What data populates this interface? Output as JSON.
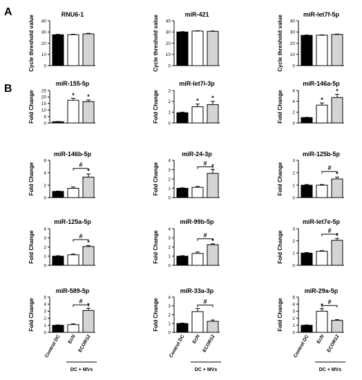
{
  "panel_labels": {
    "a": "A",
    "b": "B"
  },
  "group_label": "DC + MVs",
  "x_categories": [
    "Control DC",
    "EcN",
    "ECOR12"
  ],
  "colors": {
    "control": "#000000",
    "ecn": "#ffffff",
    "ecor12": "#d4d4d4",
    "stroke": "#000000"
  },
  "chart_data": [
    {
      "type": "bar",
      "title": "RNU6-1",
      "ylabel": "Cycle threshold value",
      "ylim": [
        0,
        40
      ],
      "yticks": [
        0,
        10,
        20,
        30,
        40
      ],
      "categories": [
        "Control DC",
        "EcN",
        "ECOR12"
      ],
      "values": [
        27.5,
        27.6,
        28.3
      ],
      "errors": [
        0.4,
        0.4,
        0.5
      ],
      "stars": [
        "",
        "",
        ""
      ],
      "brackets": []
    },
    {
      "type": "bar",
      "title": "miR-421",
      "ylabel": "Cycle threshold value",
      "ylim": [
        0,
        40
      ],
      "yticks": [
        0,
        10,
        20,
        30,
        40
      ],
      "categories": [
        "Control DC",
        "EcN",
        "ECOR12"
      ],
      "values": [
        30.0,
        30.8,
        30.6
      ],
      "errors": [
        0.3,
        0.3,
        0.3
      ],
      "stars": [
        "",
        "",
        ""
      ],
      "brackets": []
    },
    {
      "type": "bar",
      "title": "miR-let7f-5p",
      "ylabel": "Cycle threshold value",
      "ylim": [
        0,
        40
      ],
      "yticks": [
        0,
        10,
        20,
        30,
        40
      ],
      "categories": [
        "Control DC",
        "EcN",
        "ECOR12"
      ],
      "values": [
        27.0,
        27.1,
        27.8
      ],
      "errors": [
        0.3,
        0.3,
        0.3
      ],
      "stars": [
        "",
        "",
        ""
      ],
      "brackets": []
    },
    {
      "type": "bar",
      "title": "miR-155-5p",
      "ylabel": "Fold Change",
      "ylim": [
        0,
        25
      ],
      "yticks": [
        0,
        5,
        10,
        15,
        20,
        25
      ],
      "categories": [
        "Control DC",
        "EcN",
        "ECOR12"
      ],
      "values": [
        1.0,
        17.5,
        16.5
      ],
      "errors": [
        0.1,
        1.5,
        1.2
      ],
      "stars": [
        "",
        "*",
        "*"
      ],
      "brackets": []
    },
    {
      "type": "bar",
      "title": "miR-let7i-3p",
      "ylabel": "Fold Change",
      "ylim": [
        0,
        3
      ],
      "yticks": [
        0,
        1,
        2,
        3
      ],
      "categories": [
        "Control DC",
        "EcN",
        "ECOR12"
      ],
      "values": [
        0.95,
        1.5,
        1.7
      ],
      "errors": [
        0.05,
        0.25,
        0.3
      ],
      "stars": [
        "",
        "*",
        "*"
      ],
      "brackets": []
    },
    {
      "type": "bar",
      "title": "miR-146a-5p",
      "ylabel": "Fold Change",
      "ylim": [
        0,
        6
      ],
      "yticks": [
        0,
        2,
        4,
        6
      ],
      "categories": [
        "Control DC",
        "EcN",
        "ECOR12"
      ],
      "values": [
        1.0,
        3.3,
        4.7
      ],
      "errors": [
        0.05,
        0.4,
        0.6
      ],
      "stars": [
        "",
        "*",
        "*"
      ],
      "brackets": []
    },
    {
      "type": "bar",
      "title": "miR-146b-5p",
      "ylabel": "Fold Change",
      "ylim": [
        0,
        6
      ],
      "yticks": [
        0,
        2,
        4,
        6
      ],
      "categories": [
        "Control DC",
        "EcN",
        "ECOR12"
      ],
      "values": [
        1.0,
        1.5,
        3.3
      ],
      "errors": [
        0.05,
        0.2,
        0.5
      ],
      "stars": [
        "",
        "",
        "*"
      ],
      "brackets": [
        {
          "from": 1,
          "to": 2,
          "y": 4.7,
          "label": "#"
        }
      ]
    },
    {
      "type": "bar",
      "title": "miR-24-3p",
      "ylabel": "Fold Change",
      "ylim": [
        0,
        4
      ],
      "yticks": [
        0,
        1,
        2,
        3,
        4
      ],
      "categories": [
        "Control DC",
        "EcN",
        "ECOR12"
      ],
      "values": [
        1.0,
        1.1,
        2.6
      ],
      "errors": [
        0.05,
        0.1,
        0.4
      ],
      "stars": [
        "",
        "",
        "*"
      ],
      "brackets": [
        {
          "from": 1,
          "to": 2,
          "y": 3.3,
          "label": "#"
        }
      ]
    },
    {
      "type": "bar",
      "title": "miR-125b-5p",
      "ylabel": "Fold Change",
      "ylim": [
        0,
        3
      ],
      "yticks": [
        0,
        1,
        2,
        3
      ],
      "categories": [
        "Control DC",
        "EcN",
        "ECOR12"
      ],
      "values": [
        1.0,
        1.0,
        1.5
      ],
      "errors": [
        0.05,
        0.05,
        0.15
      ],
      "stars": [
        "",
        "",
        "*"
      ],
      "brackets": [
        {
          "from": 1,
          "to": 2,
          "y": 2.1,
          "label": "#"
        }
      ]
    },
    {
      "type": "bar",
      "title": "miR-125a-5p",
      "ylabel": "Fold Change",
      "ylim": [
        0,
        4
      ],
      "yticks": [
        0,
        1,
        2,
        3,
        4
      ],
      "categories": [
        "Control DC",
        "EcN",
        "ECOR12"
      ],
      "values": [
        1.0,
        1.15,
        2.05
      ],
      "errors": [
        0.05,
        0.08,
        0.1
      ],
      "stars": [
        "",
        "",
        "*"
      ],
      "brackets": [
        {
          "from": 1,
          "to": 2,
          "y": 2.8,
          "label": "#"
        }
      ]
    },
    {
      "type": "bar",
      "title": "miR-99b-5p",
      "ylabel": "Fold Change",
      "ylim": [
        0,
        4
      ],
      "yticks": [
        0,
        1,
        2,
        3,
        4
      ],
      "categories": [
        "Control DC",
        "EcN",
        "ECOR12"
      ],
      "values": [
        1.0,
        1.3,
        2.25
      ],
      "errors": [
        0.05,
        0.15,
        0.1
      ],
      "stars": [
        "",
        "",
        "*"
      ],
      "brackets": [
        {
          "from": 1,
          "to": 2,
          "y": 2.9,
          "label": "#"
        }
      ]
    },
    {
      "type": "bar",
      "title": "miR-let7e-5p",
      "ylabel": "Fold Change",
      "ylim": [
        0,
        3
      ],
      "yticks": [
        0,
        1,
        2,
        3
      ],
      "categories": [
        "Control DC",
        "EcN",
        "ECOR12"
      ],
      "values": [
        1.0,
        1.15,
        2.05
      ],
      "errors": [
        0.05,
        0.05,
        0.15
      ],
      "stars": [
        "",
        "",
        "*"
      ],
      "brackets": [
        {
          "from": 1,
          "to": 2,
          "y": 2.55,
          "label": "#"
        }
      ]
    },
    {
      "type": "bar",
      "title": "miR-589-5p",
      "ylabel": "Fold Change",
      "ylim": [
        0,
        5
      ],
      "yticks": [
        0,
        1,
        2,
        3,
        4,
        5
      ],
      "categories": [
        "Control DC",
        "EcN",
        "ECOR12"
      ],
      "values": [
        1.0,
        1.1,
        3.1
      ],
      "errors": [
        0.05,
        0.1,
        0.3
      ],
      "stars": [
        "",
        "",
        "*"
      ],
      "brackets": [
        {
          "from": 1,
          "to": 2,
          "y": 3.9,
          "label": "#"
        }
      ]
    },
    {
      "type": "bar",
      "title": "miR-33a-3p",
      "ylabel": "Fold Change",
      "ylim": [
        0,
        4
      ],
      "yticks": [
        0,
        1,
        2,
        3,
        4
      ],
      "categories": [
        "Control DC",
        "EcN",
        "ECOR12"
      ],
      "values": [
        1.0,
        2.35,
        1.25
      ],
      "errors": [
        0.05,
        0.35,
        0.15
      ],
      "stars": [
        "",
        "",
        ""
      ],
      "brackets": [
        {
          "from": 1,
          "to": 2,
          "y": 3.1,
          "label": "#"
        }
      ]
    },
    {
      "type": "bar",
      "title": "miR-29a-5p",
      "ylabel": "Fold Change",
      "ylim": [
        0,
        5
      ],
      "yticks": [
        0,
        1,
        2,
        3,
        4,
        5
      ],
      "categories": [
        "Control DC",
        "EcN",
        "ECOR12"
      ],
      "values": [
        1.0,
        3.0,
        1.7
      ],
      "errors": [
        0.05,
        0.35,
        0.1
      ],
      "stars": [
        "",
        "*",
        ""
      ],
      "brackets": [
        {
          "from": 1,
          "to": 2,
          "y": 3.8,
          "label": "#"
        }
      ]
    }
  ]
}
